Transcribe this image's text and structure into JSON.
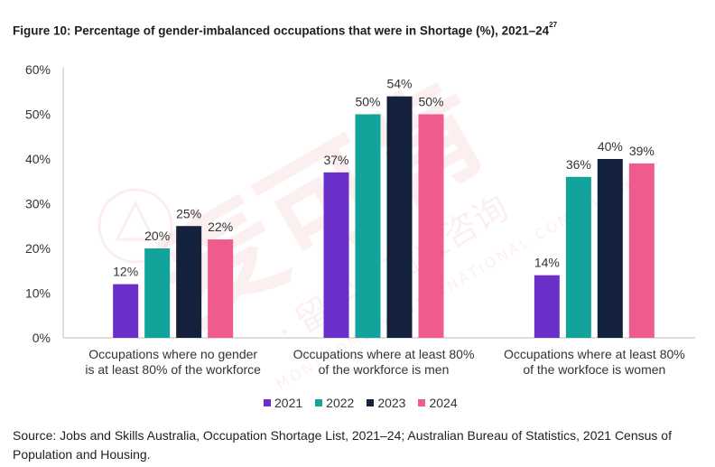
{
  "title": "Figure 10: Percentage of gender-imbalanced occupations that were in Shortage (%), 2021–24",
  "title_footnote": "27",
  "source": "Source: Jobs and Skills Australia, Occupation Shortage List, 2021–24; Australian Bureau of Statistics, 2021 Census of Population and Housing.",
  "watermark": {
    "main": "麦可肯",
    "sub": "· 留学 · 商业咨询",
    "latin": "MONTGOMERY INTERNATIONAL CONSULTANTS"
  },
  "chart_data": {
    "type": "bar",
    "categories": [
      [
        "Occupations where no gender",
        "is at least 80% of the workforce"
      ],
      [
        "Occupations where at least 80%",
        "of the workforce is men"
      ],
      [
        "Occupations where at least 80%",
        "of the workfoce is women"
      ]
    ],
    "series": [
      {
        "name": "2021",
        "color": "#6a2fc9",
        "values": [
          12,
          37,
          14
        ],
        "labels": [
          "12%",
          "37%",
          "14%"
        ]
      },
      {
        "name": "2022",
        "color": "#12a39a",
        "values": [
          20,
          50,
          36
        ],
        "labels": [
          "20%",
          "50%",
          "36%"
        ]
      },
      {
        "name": "2023",
        "color": "#14213d",
        "values": [
          25,
          54,
          40
        ],
        "labels": [
          "25%",
          "54%",
          "40%"
        ]
      },
      {
        "name": "2024",
        "color": "#ef5b8c",
        "values": [
          22,
          50,
          39
        ],
        "labels": [
          "22%",
          "50%",
          "39%"
        ]
      }
    ],
    "ylim": [
      0,
      60
    ],
    "yticks": [
      "0%",
      "10%",
      "20%",
      "30%",
      "40%",
      "50%",
      "60%"
    ],
    "ytick_values": [
      0,
      10,
      20,
      30,
      40,
      50,
      60
    ],
    "grid": false,
    "legend_position": "bottom"
  }
}
